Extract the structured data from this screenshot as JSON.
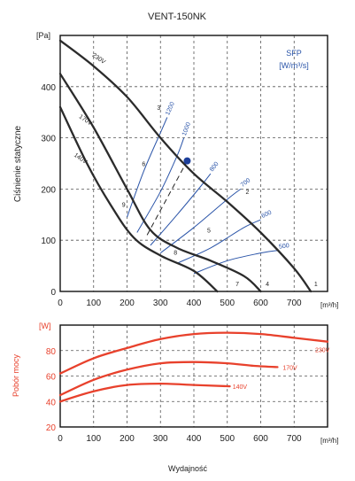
{
  "title": "VENT-150NK",
  "colors": {
    "grid": "#555555",
    "axis": "#111111",
    "fan_curve": "#2b2b2b",
    "sfp_curve": "#2a54a8",
    "sfp_text": "#2a54a8",
    "power_curve": "#e8412c",
    "power_text": "#e8412c",
    "marker": "#1d3f9a"
  },
  "chart_data": [
    {
      "type": "line",
      "name": "pressure",
      "ylabel": "Ciśnienie statyczne",
      "yunit": "[Pa]",
      "xunit": "[m³/h]",
      "xlim": [
        0,
        800
      ],
      "ylim": [
        0,
        500
      ],
      "xticks": [
        0,
        100,
        200,
        300,
        400,
        500,
        600,
        700
      ],
      "yticks": [
        0,
        100,
        200,
        300,
        400
      ],
      "grid": true,
      "sfp_legend": {
        "title": "SFP",
        "unit": "[W/m³/s]"
      },
      "series": [
        {
          "name": "230V",
          "points": [
            [
              0,
              490
            ],
            [
              100,
              440
            ],
            [
              200,
              380
            ],
            [
              300,
              300
            ],
            [
              400,
              230
            ],
            [
              500,
              175
            ],
            [
              600,
              115
            ],
            [
              700,
              45
            ],
            [
              750,
              0
            ]
          ]
        },
        {
          "name": "170V",
          "points": [
            [
              0,
              425
            ],
            [
              100,
              320
            ],
            [
              200,
              200
            ],
            [
              270,
              120
            ],
            [
              350,
              85
            ],
            [
              450,
              60
            ],
            [
              550,
              30
            ],
            [
              600,
              0
            ]
          ]
        },
        {
          "name": "140V",
          "points": [
            [
              0,
              360
            ],
            [
              80,
              250
            ],
            [
              150,
              170
            ],
            [
              220,
              105
            ],
            [
              300,
              70
            ],
            [
              400,
              40
            ],
            [
              470,
              0
            ]
          ]
        }
      ],
      "point_labels": [
        "1",
        "2",
        "3",
        "4",
        "5",
        "6",
        "7",
        "8",
        "9"
      ],
      "sfp_lines": [
        {
          "name": "500",
          "points": [
            [
              400,
              35
            ],
            [
              500,
              60
            ],
            [
              600,
              75
            ],
            [
              650,
              80
            ]
          ]
        },
        {
          "name": "600",
          "points": [
            [
              350,
              55
            ],
            [
              450,
              85
            ],
            [
              550,
              125
            ],
            [
              600,
              140
            ]
          ]
        },
        {
          "name": "700",
          "points": [
            [
              300,
              75
            ],
            [
              400,
              125
            ],
            [
              500,
              180
            ],
            [
              540,
              200
            ]
          ]
        },
        {
          "name": "800",
          "points": [
            [
              270,
              90
            ],
            [
              350,
              150
            ],
            [
              420,
              205
            ],
            [
              450,
              230
            ]
          ]
        },
        {
          "name": "1000",
          "points": [
            [
              230,
              115
            ],
            [
              300,
              195
            ],
            [
              350,
              265
            ],
            [
              370,
              300
            ]
          ]
        },
        {
          "name": "1200",
          "points": [
            [
              200,
              145
            ],
            [
              250,
              235
            ],
            [
              300,
              310
            ],
            [
              320,
              340
            ]
          ]
        }
      ],
      "operating_point": {
        "x": 380,
        "y": 255
      },
      "dashed_line": {
        "points": [
          [
            260,
            110
          ],
          [
            380,
            255
          ]
        ]
      }
    },
    {
      "type": "line",
      "name": "power",
      "ylabel": "Pobór mocy",
      "yunit": "[W]",
      "xunit": "[m³/h]",
      "xlabel": "Wydajność",
      "xlim": [
        0,
        800
      ],
      "ylim": [
        20,
        100
      ],
      "xticks": [
        0,
        100,
        200,
        300,
        400,
        500,
        600,
        700
      ],
      "yticks": [
        20,
        40,
        60,
        80
      ],
      "grid": true,
      "series": [
        {
          "name": "230V",
          "points": [
            [
              0,
              62
            ],
            [
              100,
              74
            ],
            [
              200,
              82
            ],
            [
              300,
              89
            ],
            [
              400,
              93
            ],
            [
              500,
              94
            ],
            [
              600,
              93
            ],
            [
              700,
              90
            ],
            [
              800,
              87
            ]
          ]
        },
        {
          "name": "170V",
          "points": [
            [
              0,
              45
            ],
            [
              100,
              57
            ],
            [
              200,
              65
            ],
            [
              300,
              70
            ],
            [
              400,
              71
            ],
            [
              500,
              70
            ],
            [
              580,
              68
            ],
            [
              650,
              67
            ]
          ]
        },
        {
          "name": "140V",
          "points": [
            [
              0,
              40
            ],
            [
              100,
              48
            ],
            [
              200,
              53
            ],
            [
              300,
              54
            ],
            [
              400,
              53
            ],
            [
              500,
              52
            ],
            [
              500,
              52
            ]
          ]
        }
      ]
    }
  ]
}
